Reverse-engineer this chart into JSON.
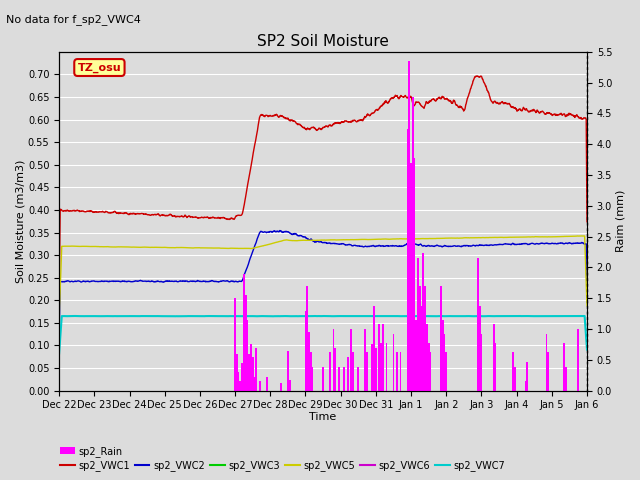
{
  "title": "SP2 Soil Moisture",
  "subtitle": "No data for f_sp2_VWC4",
  "xlabel": "Time",
  "ylabel_left": "Soil Moisture (m3/m3)",
  "ylabel_right": "Raim (mm)",
  "ylim_left": [
    0.0,
    0.75
  ],
  "ylim_right": [
    0.0,
    5.5
  ],
  "colors": {
    "sp2_VWC1": "#cc0000",
    "sp2_VWC2": "#0000cc",
    "sp2_VWC3": "#00cc00",
    "sp2_VWC5": "#cccc00",
    "sp2_VWC6": "#cc00cc",
    "sp2_VWC7": "#00cccc",
    "sp2_Rain": "#ff00ff"
  },
  "legend_label": "TZ_osu",
  "legend_bg": "#ffff99",
  "legend_border": "#cc0000",
  "plot_bg": "#dcdcdc",
  "fig_bg": "#dcdcdc",
  "x_ticks_pos": [
    0,
    1,
    2,
    3,
    4,
    5,
    6,
    7,
    8,
    9,
    10,
    11,
    12,
    13,
    14,
    15
  ],
  "x_tick_labels": [
    "Dec 22",
    "Dec 23",
    "Dec 24",
    "Dec 25",
    "Dec 26",
    "Dec 27",
    "Dec 28",
    "Dec 29",
    "Dec 30",
    "Dec 31",
    "Jan 1",
    "Jan 2",
    "Jan 3",
    "Jan 4",
    "Jan 5",
    "Jan 6"
  ],
  "yticks_left": [
    0.0,
    0.05,
    0.1,
    0.15,
    0.2,
    0.25,
    0.3,
    0.35,
    0.4,
    0.45,
    0.5,
    0.55,
    0.6,
    0.65,
    0.7
  ],
  "yticks_right": [
    0.0,
    0.5,
    1.0,
    1.5,
    2.0,
    2.5,
    3.0,
    3.5,
    4.0,
    4.5,
    5.0,
    5.5
  ],
  "rain_events": [
    [
      5.0,
      1.5
    ],
    [
      5.05,
      0.6
    ],
    [
      5.1,
      0.3
    ],
    [
      5.15,
      0.15
    ],
    [
      5.2,
      0.45
    ],
    [
      5.25,
      1.9
    ],
    [
      5.3,
      1.55
    ],
    [
      5.35,
      1.15
    ],
    [
      5.4,
      0.6
    ],
    [
      5.45,
      0.75
    ],
    [
      5.5,
      0.55
    ],
    [
      5.55,
      0.22
    ],
    [
      5.6,
      0.7
    ],
    [
      5.7,
      0.15
    ],
    [
      5.9,
      0.22
    ],
    [
      6.3,
      0.12
    ],
    [
      6.5,
      0.65
    ],
    [
      6.55,
      0.17
    ],
    [
      7.0,
      1.3
    ],
    [
      7.05,
      1.7
    ],
    [
      7.1,
      0.95
    ],
    [
      7.15,
      0.62
    ],
    [
      7.2,
      0.38
    ],
    [
      7.5,
      0.38
    ],
    [
      7.7,
      0.62
    ],
    [
      7.8,
      1.0
    ],
    [
      7.85,
      0.7
    ],
    [
      7.95,
      0.38
    ],
    [
      8.1,
      0.38
    ],
    [
      8.2,
      0.55
    ],
    [
      8.3,
      1.0
    ],
    [
      8.35,
      0.62
    ],
    [
      8.5,
      0.38
    ],
    [
      8.7,
      1.0
    ],
    [
      8.75,
      0.62
    ],
    [
      8.9,
      0.75
    ],
    [
      8.95,
      1.38
    ],
    [
      9.0,
      0.7
    ],
    [
      9.1,
      1.08
    ],
    [
      9.15,
      0.77
    ],
    [
      9.2,
      1.08
    ],
    [
      9.3,
      0.77
    ],
    [
      9.5,
      0.92
    ],
    [
      9.6,
      0.62
    ],
    [
      9.7,
      0.62
    ],
    [
      9.9,
      4.25
    ],
    [
      9.95,
      5.35
    ],
    [
      10.0,
      3.7
    ],
    [
      10.05,
      4.77
    ],
    [
      10.1,
      3.77
    ],
    [
      10.15,
      1.15
    ],
    [
      10.2,
      2.15
    ],
    [
      10.25,
      1.7
    ],
    [
      10.3,
      1.38
    ],
    [
      10.35,
      2.23
    ],
    [
      10.4,
      1.7
    ],
    [
      10.45,
      1.08
    ],
    [
      10.5,
      0.77
    ],
    [
      10.55,
      0.62
    ],
    [
      10.85,
      1.7
    ],
    [
      10.9,
      1.15
    ],
    [
      10.95,
      0.92
    ],
    [
      11.0,
      0.62
    ],
    [
      11.9,
      2.15
    ],
    [
      11.95,
      1.38
    ],
    [
      12.0,
      0.92
    ],
    [
      12.35,
      1.08
    ],
    [
      12.4,
      0.77
    ],
    [
      12.9,
      0.62
    ],
    [
      12.95,
      0.38
    ],
    [
      13.25,
      0.15
    ],
    [
      13.3,
      0.46
    ],
    [
      13.85,
      0.92
    ],
    [
      13.9,
      0.62
    ],
    [
      14.35,
      0.77
    ],
    [
      14.4,
      0.38
    ],
    [
      14.75,
      1.0
    ]
  ]
}
